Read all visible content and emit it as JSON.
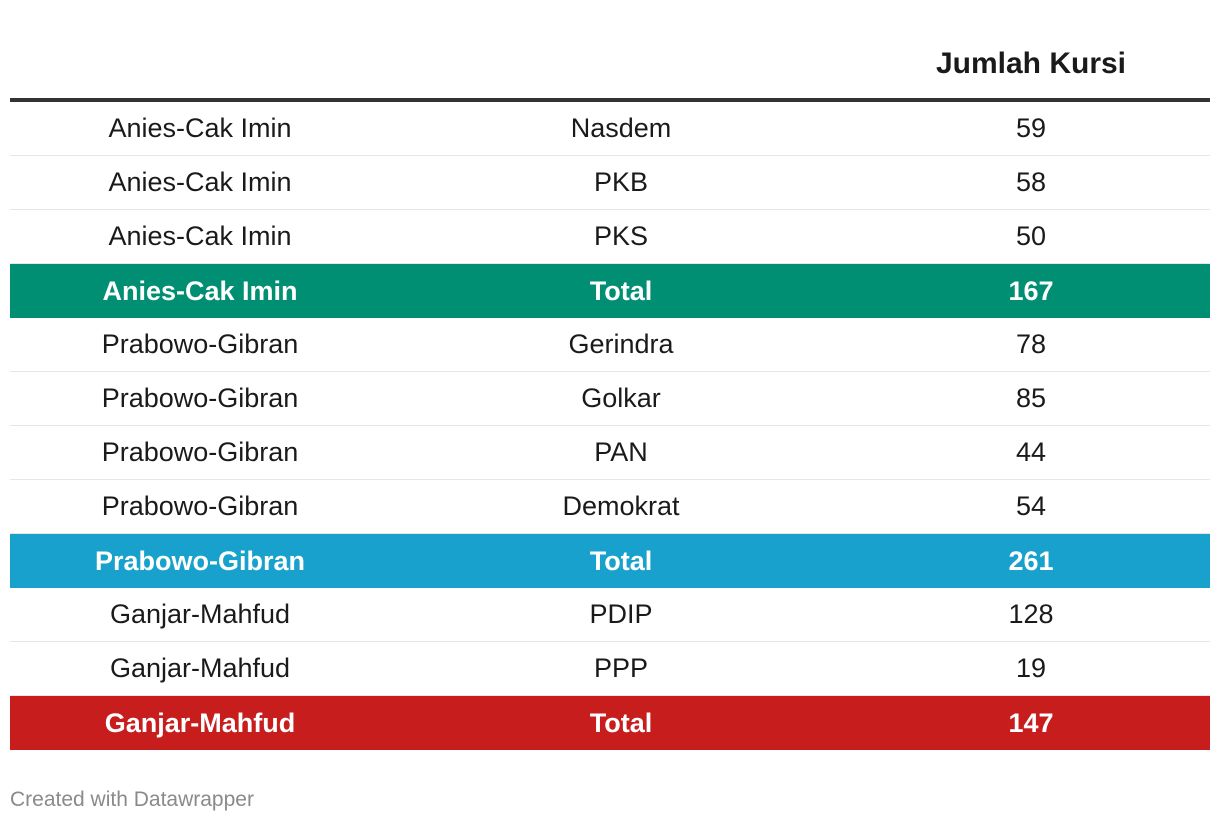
{
  "chart_data": {
    "type": "table",
    "columns": [
      "",
      "",
      "Jumlah Kursi"
    ],
    "rows": [
      {
        "coalition": "Anies-Cak Imin",
        "party": "Nasdem",
        "seats": "59",
        "total": false
      },
      {
        "coalition": "Anies-Cak Imin",
        "party": "PKB",
        "seats": "58",
        "total": false
      },
      {
        "coalition": "Anies-Cak Imin",
        "party": "PKS",
        "seats": "50",
        "total": false
      },
      {
        "coalition": "Anies-Cak Imin",
        "party": "Total",
        "seats": "167",
        "total": true,
        "color": "#008f72"
      },
      {
        "coalition": "Prabowo-Gibran",
        "party": "Gerindra",
        "seats": "78",
        "total": false
      },
      {
        "coalition": "Prabowo-Gibran",
        "party": "Golkar",
        "seats": "85",
        "total": false
      },
      {
        "coalition": "Prabowo-Gibran",
        "party": "PAN",
        "seats": "44",
        "total": false
      },
      {
        "coalition": "Prabowo-Gibran",
        "party": "Demokrat",
        "seats": "54",
        "total": false
      },
      {
        "coalition": "Prabowo-Gibran",
        "party": "Total",
        "seats": "261",
        "total": true,
        "color": "#18a1cd"
      },
      {
        "coalition": "Ganjar-Mahfud",
        "party": "PDIP",
        "seats": "128",
        "total": false
      },
      {
        "coalition": "Ganjar-Mahfud",
        "party": "PPP",
        "seats": "19",
        "total": false
      },
      {
        "coalition": "Ganjar-Mahfud",
        "party": "Total",
        "seats": "147",
        "total": true,
        "color": "#c71e1d"
      }
    ]
  },
  "footer": {
    "credit": "Created with Datawrapper"
  }
}
